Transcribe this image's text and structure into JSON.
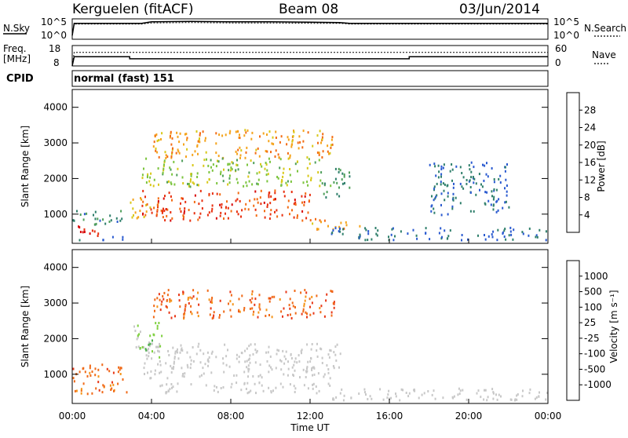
{
  "header": {
    "station": "Kerguelen (fitACF)",
    "beam": "Beam 08",
    "date": "03/Jun/2014"
  },
  "nsky_panel": {
    "left_label": "N.Sky",
    "right_label": "N.Search",
    "left_ticks": [
      "10^5",
      "10^0"
    ],
    "right_ticks": [
      "10^5",
      "10^0"
    ]
  },
  "freq_panel": {
    "left_label_1": "Freq.",
    "left_label_2": "[MHz]",
    "right_label": "Nave",
    "left_ticks": [
      "18",
      "8"
    ],
    "right_ticks": [
      "60",
      "0"
    ]
  },
  "cpid": {
    "label": "CPID",
    "value": "normal (fast) 151"
  },
  "chart_data": [
    {
      "type": "line",
      "name": "N.Sky / N.Search",
      "x_unit": "hours UT",
      "series": [
        {
          "name": "N.Sky",
          "x": [
            0,
            0.1,
            3.5,
            4,
            6,
            8,
            10,
            12,
            13.5,
            14,
            24
          ],
          "y": [
            1,
            4.3,
            4.3,
            4.7,
            4.8,
            4.7,
            4.7,
            4.6,
            4.5,
            4.3,
            4.3
          ]
        },
        {
          "name": "N.Search",
          "x": [
            0,
            0.1,
            3.5,
            4,
            6,
            8,
            10,
            12,
            13.5,
            14,
            24
          ],
          "y": [
            1,
            4.1,
            4.1,
            4.4,
            4.5,
            4.4,
            4.4,
            4.3,
            4.3,
            4.1,
            4.1
          ]
        }
      ]
    },
    {
      "type": "line",
      "name": "Freq / Nave",
      "x_unit": "hours UT",
      "series": [
        {
          "name": "Freq",
          "x": [
            0,
            0.1,
            2.9,
            2.9,
            17.0,
            17.0,
            24
          ],
          "y": [
            8,
            12.5,
            12.5,
            11.5,
            11.5,
            12.5,
            12.5
          ]
        },
        {
          "name": "Nave",
          "x": [
            0,
            0.1,
            24
          ],
          "y": [
            0,
            40,
            40
          ]
        }
      ]
    },
    {
      "type": "heatmap",
      "name": "Power",
      "ylabel": "Slant Range [km]",
      "xlabel": "Time UT",
      "xlim": [
        0,
        24
      ],
      "ylim": [
        180,
        4500
      ],
      "yticks": [
        "1000",
        "2000",
        "3000",
        "4000"
      ],
      "colorbar": {
        "label": "Power [dB]",
        "ticks": [
          "4",
          "8",
          "12",
          "16",
          "20",
          "24",
          "28"
        ],
        "range": [
          0,
          30
        ],
        "colors": [
          "#0a1ed8",
          "#2a5ad0",
          "#2f7f6b",
          "#4f9f5a",
          "#7cc43e",
          "#d8c818",
          "#f5a41c",
          "#f36c14",
          "#e83010",
          "#d80808"
        ]
      },
      "regions": [
        {
          "t": [
            0.2,
            1.8
          ],
          "r": [
            400,
            700
          ],
          "value": 27
        },
        {
          "t": [
            0,
            2.5
          ],
          "r": [
            700,
            1150
          ],
          "value": 8
        },
        {
          "t": [
            0.1,
            3.0
          ],
          "r": [
            300,
            400
          ],
          "value": 6
        },
        {
          "t": [
            2.9,
            4.0
          ],
          "r": [
            900,
            1500
          ],
          "value": 18
        },
        {
          "t": [
            3.5,
            12.0
          ],
          "r": [
            850,
            1700
          ],
          "value": 25
        },
        {
          "t": [
            4.0,
            13.2
          ],
          "r": [
            2600,
            3400
          ],
          "value": 20
        },
        {
          "t": [
            3.5,
            12.5
          ],
          "r": [
            1800,
            2600
          ],
          "value": 14
        },
        {
          "t": [
            12.0,
            14.5
          ],
          "r": [
            600,
            900
          ],
          "value": 20
        },
        {
          "t": [
            13.0,
            24.0
          ],
          "r": [
            300,
            650
          ],
          "value": 6
        },
        {
          "t": [
            12.5,
            14.0
          ],
          "r": [
            1500,
            2300
          ],
          "value": 10
        },
        {
          "t": [
            18.0,
            22.0
          ],
          "r": [
            1000,
            2500
          ],
          "value": 6
        }
      ]
    },
    {
      "type": "heatmap",
      "name": "Velocity",
      "ylabel": "Slant Range [km]",
      "xlabel": "Time UT",
      "xlim": [
        0,
        24
      ],
      "ylim": [
        180,
        4500
      ],
      "yticks": [
        "1000",
        "2000",
        "3000",
        "4000"
      ],
      "xticks": [
        "00:00",
        "04:00",
        "08:00",
        "12:00",
        "16:00",
        "20:00",
        "00:00"
      ],
      "colorbar": {
        "label": "Velocity [m s⁻¹]",
        "ticks": [
          "1000",
          "500",
          "100",
          "25",
          "-25",
          "-100",
          "-500",
          "-1000"
        ],
        "colors": [
          "#1830c8",
          "#2f64b8",
          "#3f8f6f",
          "#4cae4c",
          "#7fd040",
          "#c8c8c8",
          "#c8c8c8",
          "#f0c020",
          "#f59418",
          "#f06a18",
          "#e83818",
          "#e01010"
        ]
      },
      "regions": [
        {
          "t": [
            0,
            2.8
          ],
          "r": [
            450,
            1300
          ],
          "value": -150
        },
        {
          "t": [
            3.5,
            13.5
          ],
          "r": [
            900,
            1900
          ],
          "value": 0
        },
        {
          "t": [
            4.0,
            13.2
          ],
          "r": [
            2600,
            3400
          ],
          "value": -200
        },
        {
          "t": [
            3.0,
            4.5
          ],
          "r": [
            1500,
            2500
          ],
          "value": 80
        },
        {
          "t": [
            13.0,
            24.0
          ],
          "r": [
            300,
            650
          ],
          "value": 0
        },
        {
          "t": [
            4.0,
            13.0
          ],
          "r": [
            500,
            800
          ],
          "value": 0
        }
      ]
    }
  ]
}
